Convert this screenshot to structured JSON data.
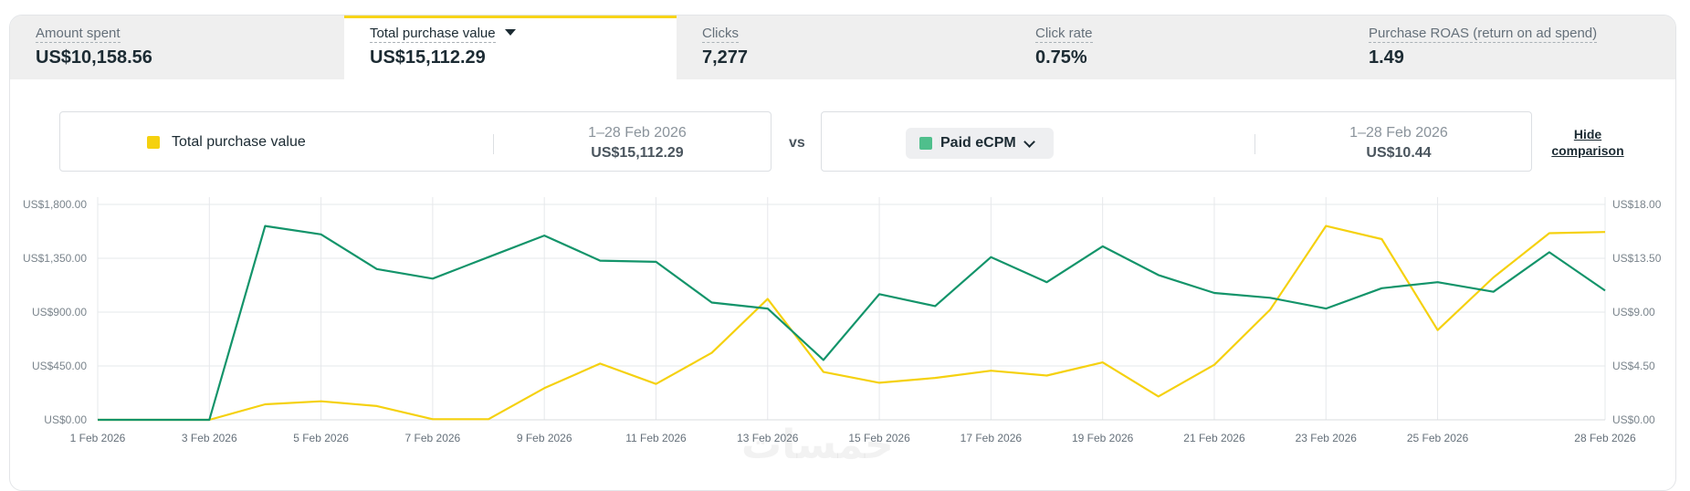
{
  "metrics": [
    {
      "label": "Amount spent",
      "value": "US$10,158.56",
      "active": false
    },
    {
      "label": "Total purchase value",
      "value": "US$15,112.29",
      "active": true
    },
    {
      "label": "Clicks",
      "value": "7,277",
      "active": false
    },
    {
      "label": "Click rate",
      "value": "0.75%",
      "active": false
    },
    {
      "label": "Purchase ROAS (return on ad spend)",
      "value": "1.49",
      "active": false
    }
  ],
  "comparison": {
    "primary": {
      "label": "Total purchase value",
      "range": "1–28 Feb 2026",
      "value": "US$15,112.29"
    },
    "vs": "vs",
    "secondary": {
      "label": "Paid eCPM",
      "range": "1–28 Feb 2026",
      "value": "US$10.44"
    },
    "hide_line1": "Hide",
    "hide_line2": "comparison"
  },
  "colors": {
    "primary": "#f5d10f",
    "secondary": "#13946a",
    "accent": "#f7d417"
  },
  "chart_data": {
    "type": "line",
    "title": "",
    "x": [
      "1 Feb 2026",
      "2 Feb 2026",
      "3 Feb 2026",
      "4 Feb 2026",
      "5 Feb 2026",
      "6 Feb 2026",
      "7 Feb 2026",
      "8 Feb 2026",
      "9 Feb 2026",
      "10 Feb 2026",
      "11 Feb 2026",
      "12 Feb 2026",
      "13 Feb 2026",
      "14 Feb 2026",
      "15 Feb 2026",
      "16 Feb 2026",
      "17 Feb 2026",
      "18 Feb 2026",
      "19 Feb 2026",
      "20 Feb 2026",
      "21 Feb 2026",
      "22 Feb 2026",
      "23 Feb 2026",
      "24 Feb 2026",
      "25 Feb 2026",
      "26 Feb 2026",
      "27 Feb 2026",
      "28 Feb 2026"
    ],
    "x_tick_labels": [
      "1 Feb 2026",
      "3 Feb 2026",
      "5 Feb 2026",
      "7 Feb 2026",
      "9 Feb 2026",
      "11 Feb 2026",
      "13 Feb 2026",
      "15 Feb 2026",
      "17 Feb 2026",
      "19 Feb 2026",
      "21 Feb 2026",
      "23 Feb 2026",
      "25 Feb 2026",
      "28 Feb 2026"
    ],
    "x_tick_indices": [
      0,
      2,
      4,
      6,
      8,
      10,
      12,
      14,
      16,
      18,
      20,
      22,
      24,
      27
    ],
    "y_left": {
      "ylim": [
        0,
        1800
      ],
      "ticks": [
        "US$0.00",
        "US$450.00",
        "US$900.00",
        "US$1,350.00",
        "US$1,800.00"
      ]
    },
    "y_right": {
      "ylim": [
        0,
        18
      ],
      "ticks": [
        "US$0.00",
        "US$4.50",
        "US$9.00",
        "US$13.50",
        "US$18.00"
      ]
    },
    "series": [
      {
        "name": "Total purchase value",
        "axis": "left",
        "color": "#f5d10f",
        "values": [
          0,
          0,
          0,
          130,
          155,
          115,
          5,
          5,
          265,
          470,
          300,
          560,
          1010,
          400,
          310,
          350,
          410,
          370,
          480,
          195,
          460,
          920,
          1620,
          1510,
          750,
          1190,
          1560,
          1570
        ]
      },
      {
        "name": "Paid eCPM",
        "axis": "right",
        "color": "#13946a",
        "values": [
          0,
          0,
          0,
          16.2,
          15.5,
          12.6,
          11.8,
          13.6,
          15.4,
          13.3,
          13.2,
          9.8,
          9.3,
          5.0,
          10.5,
          9.5,
          13.6,
          11.5,
          14.5,
          12.1,
          10.6,
          10.2,
          9.3,
          11.0,
          11.5,
          10.7,
          14.0,
          10.8
        ]
      }
    ],
    "grid": true,
    "legend": "none"
  }
}
